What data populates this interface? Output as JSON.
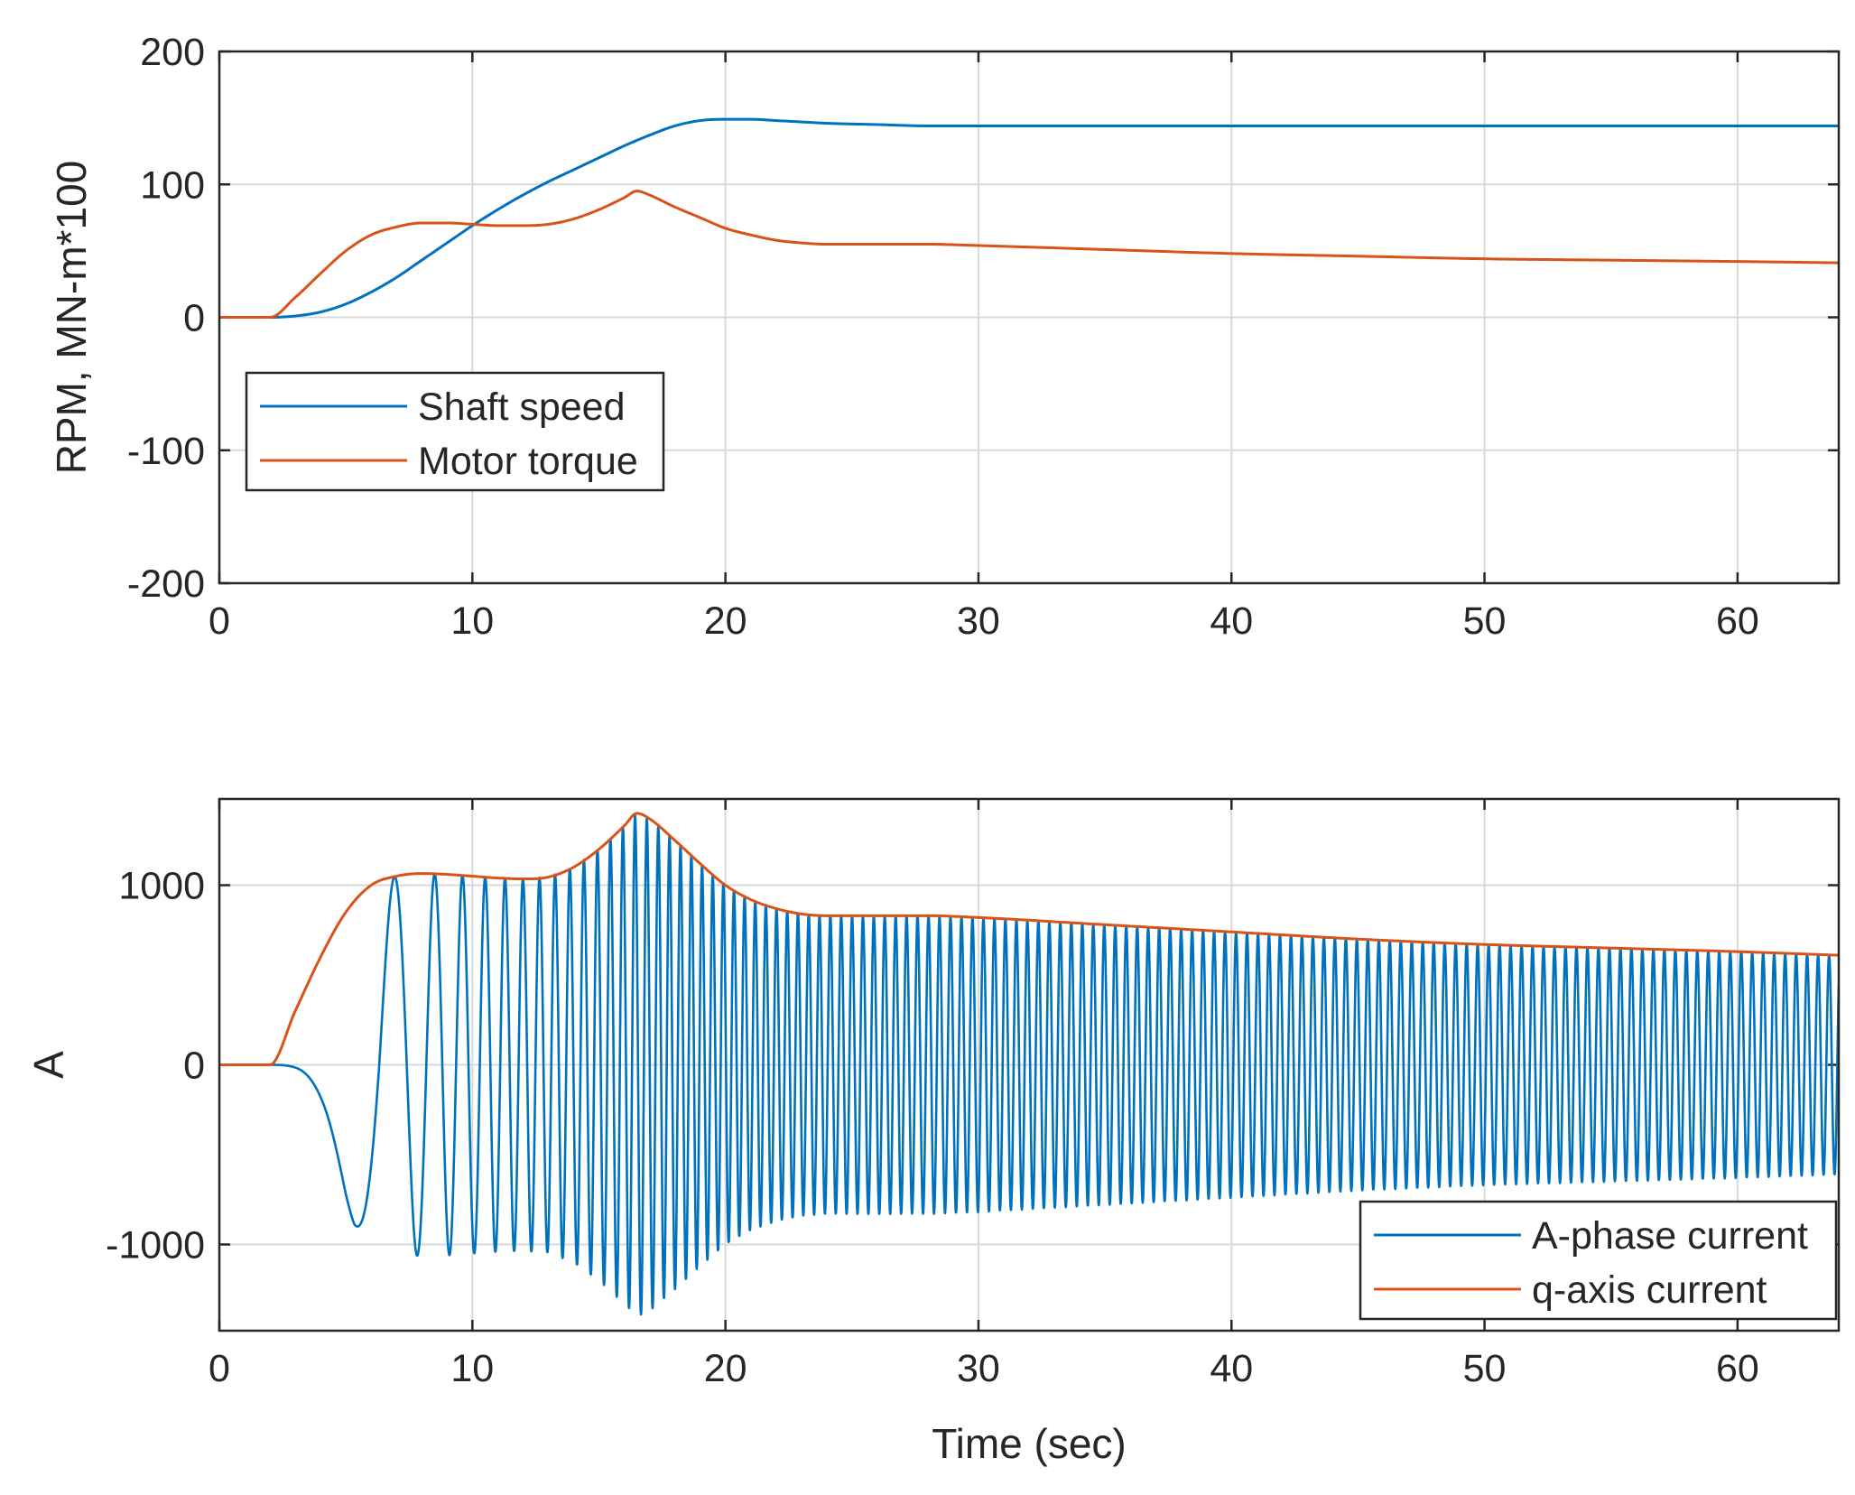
{
  "figure": {
    "colors": {
      "series1": "#0072BD",
      "series2": "#D95319",
      "grid": "#d9d9d9",
      "axis": "#262626",
      "background": "#ffffff"
    }
  },
  "chart_data": [
    {
      "type": "line",
      "title": "",
      "xlabel": "",
      "ylabel": "RPM, MN-m*100",
      "xlim": [
        0,
        64
      ],
      "ylim": [
        -200,
        200
      ],
      "xticks": [
        0,
        10,
        20,
        30,
        40,
        50,
        60
      ],
      "yticks": [
        -200,
        -100,
        0,
        100,
        200
      ],
      "grid": true,
      "legend_position": "middle-left",
      "series": [
        {
          "name": "Shaft speed",
          "x": [
            0,
            2,
            3,
            4,
            5,
            6,
            7,
            8,
            9,
            10,
            11,
            12,
            13,
            14,
            15,
            16,
            17,
            18,
            19,
            20,
            21,
            22,
            23,
            24,
            26,
            28,
            30,
            35,
            40,
            45,
            50,
            55,
            60,
            64
          ],
          "y": [
            0,
            0,
            1,
            4,
            10,
            19,
            30,
            43,
            56,
            69,
            81,
            92,
            102,
            111,
            120,
            129,
            137,
            144,
            148,
            149,
            149,
            148,
            147,
            146,
            145,
            144,
            144,
            144,
            144,
            144,
            144,
            144,
            144,
            144
          ]
        },
        {
          "name": "Motor torque",
          "x": [
            0,
            2,
            3,
            4,
            5,
            6,
            7,
            8,
            9,
            10,
            11,
            12,
            13,
            14,
            15,
            16,
            16.5,
            17,
            18,
            19,
            20,
            21,
            22,
            23,
            24,
            26,
            28,
            30,
            35,
            40,
            45,
            50,
            55,
            60,
            64
          ],
          "y": [
            0,
            0,
            15,
            33,
            50,
            62,
            68,
            71,
            71,
            70,
            69,
            69,
            70,
            74,
            81,
            90,
            95,
            92,
            83,
            75,
            67,
            62,
            58,
            56,
            55,
            55,
            55,
            54,
            51,
            48,
            46,
            44,
            43,
            42,
            41
          ]
        }
      ]
    },
    {
      "type": "line",
      "title": "",
      "xlabel": "Time (sec)",
      "ylabel": "A",
      "xlim": [
        0,
        64
      ],
      "ylim": [
        -1480,
        1480
      ],
      "xticks": [
        0,
        10,
        20,
        30,
        40,
        50,
        60
      ],
      "yticks": [
        -1000,
        0,
        1000
      ],
      "grid": true,
      "legend_position": "bottom-right",
      "series": [
        {
          "name": "A-phase current",
          "kind": "oscillation",
          "description_points": {
            "envelope_x": [
              0,
              2,
              3,
              4,
              5,
              6,
              7,
              8,
              9,
              10,
              11,
              12,
              13,
              14,
              15,
              16,
              16.5,
              17,
              18,
              19,
              20,
              21,
              22,
              23,
              24,
              26,
              28,
              30,
              35,
              40,
              45,
              50,
              55,
              60,
              64
            ],
            "envelope_y": [
              0,
              0,
              300,
              600,
              850,
              1000,
              1050,
              1065,
              1060,
              1050,
              1040,
              1035,
              1045,
              1100,
              1200,
              1330,
              1400,
              1370,
              1250,
              1120,
              1000,
              920,
              870,
              840,
              830,
              830,
              830,
              820,
              780,
              740,
              700,
              670,
              650,
              630,
              610
            ],
            "speed_x": [
              0,
              2,
              3,
              4,
              5,
              6,
              7,
              8,
              9,
              10,
              11,
              12,
              13,
              14,
              15,
              16,
              17,
              18,
              19,
              20,
              21,
              22,
              23,
              24,
              26,
              28,
              30,
              64
            ],
            "speed_y": [
              0,
              0,
              1,
              4,
              10,
              19,
              30,
              43,
              56,
              69,
              81,
              92,
              102,
              111,
              120,
              129,
              137,
              144,
              148,
              149,
              149,
              148,
              147,
              146,
              145,
              144,
              144,
              144
            ],
            "first_trough_x": 5.8,
            "first_trough_y": -880
          }
        },
        {
          "name": "q-axis current",
          "x": [
            0,
            2,
            3,
            4,
            5,
            6,
            7,
            8,
            9,
            10,
            11,
            12,
            13,
            14,
            15,
            16,
            16.5,
            17,
            18,
            19,
            20,
            21,
            22,
            23,
            24,
            26,
            28,
            30,
            35,
            40,
            45,
            50,
            55,
            60,
            64
          ],
          "y": [
            0,
            0,
            300,
            600,
            850,
            1000,
            1050,
            1065,
            1060,
            1050,
            1040,
            1035,
            1045,
            1100,
            1200,
            1330,
            1400,
            1370,
            1250,
            1120,
            1000,
            920,
            870,
            840,
            830,
            830,
            830,
            820,
            780,
            740,
            700,
            670,
            650,
            630,
            610
          ]
        }
      ]
    }
  ]
}
